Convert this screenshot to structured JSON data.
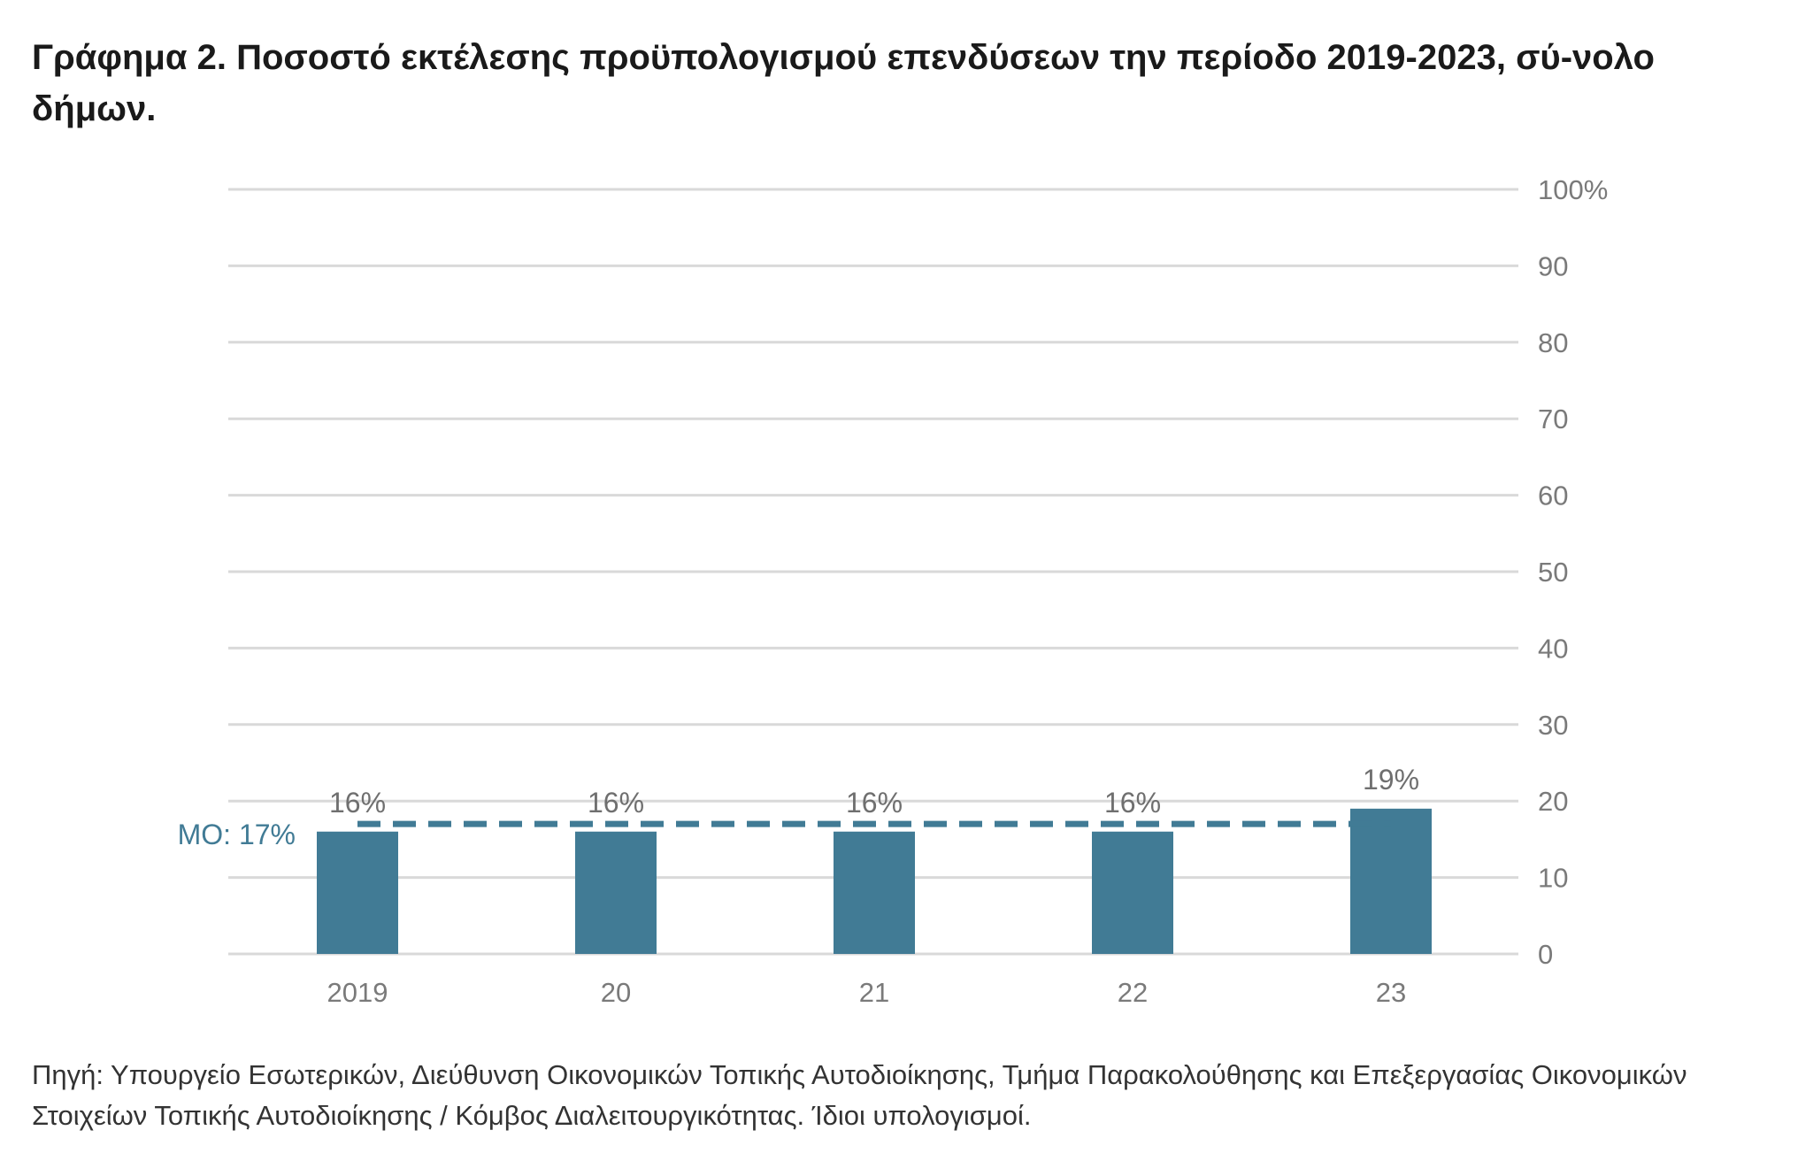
{
  "title": "Γράφημα 2. Ποσοστό εκτέλεσης προϋπολογισμού επενδύσεων την περίοδο 2019-2023, σύ-νολο δήμων.",
  "source": "Πηγή: Υπουργείο Εσωτερικών, Διεύθυνση Οικονομικών Τοπικής Αυτοδιοίκησης, Τμήμα Παρακολούθησης και Επεξεργασίας Οικονομικών Στοιχείων Τοπικής Αυτοδιοίκησης / Κόμβος Διαλειτουργικότητας. Ίδιοι υπολογισμοί.",
  "chart_data": {
    "type": "bar",
    "categories": [
      "2019",
      "20",
      "21",
      "22",
      "23"
    ],
    "values": [
      16,
      16,
      16,
      16,
      19
    ],
    "data_labels": [
      "16%",
      "16%",
      "16%",
      "16%",
      "19%"
    ],
    "ylim": [
      0,
      100
    ],
    "yticks": [
      0,
      10,
      20,
      30,
      40,
      50,
      60,
      70,
      80,
      90,
      100
    ],
    "ytick_labels": [
      "0",
      "10",
      "20",
      "30",
      "40",
      "50",
      "60",
      "70",
      "80",
      "90",
      "100%"
    ],
    "y_axis_side": "right",
    "grid": true,
    "xlabel": "",
    "ylabel": "",
    "average": {
      "value": 17,
      "label": "ΜΟ: 17%",
      "style": "dashed"
    },
    "colors": {
      "bar": "#417b95",
      "average_line": "#417b95",
      "grid": "#d9d9d9",
      "tick_text": "#7a7a7a",
      "data_label_text": "#6f6f6f"
    }
  }
}
